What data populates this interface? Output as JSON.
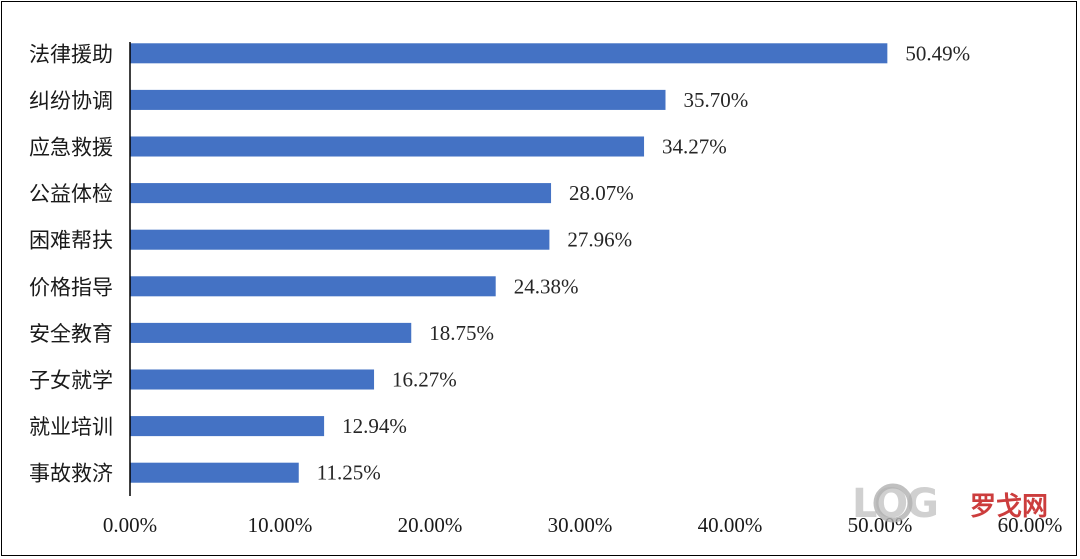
{
  "chart_data": {
    "type": "bar",
    "orientation": "horizontal",
    "categories": [
      "法律援助",
      "纠纷协调",
      "应急救援",
      "公益体检",
      "困难帮扶",
      "价格指导",
      "安全教育",
      "子女就学",
      "就业培训",
      "事故救济"
    ],
    "values": [
      50.49,
      35.7,
      34.27,
      28.07,
      27.96,
      24.38,
      18.75,
      16.27,
      12.94,
      11.25
    ],
    "value_labels": [
      "50.49%",
      "35.70%",
      "34.27%",
      "28.07%",
      "27.96%",
      "24.38%",
      "18.75%",
      "16.27%",
      "12.94%",
      "11.25%"
    ],
    "x_ticks": [
      "0.00%",
      "10.00%",
      "20.00%",
      "30.00%",
      "40.00%",
      "50.00%",
      "60.00%"
    ],
    "xlim": [
      0,
      60
    ],
    "bar_color": "#4472C4",
    "grid": false,
    "title": "",
    "xlabel": "",
    "ylabel": ""
  },
  "watermark": {
    "logo_letters": "LOG",
    "text": "罗戈网",
    "color": "#c62828",
    "ring_color": "#b0b0b0"
  }
}
